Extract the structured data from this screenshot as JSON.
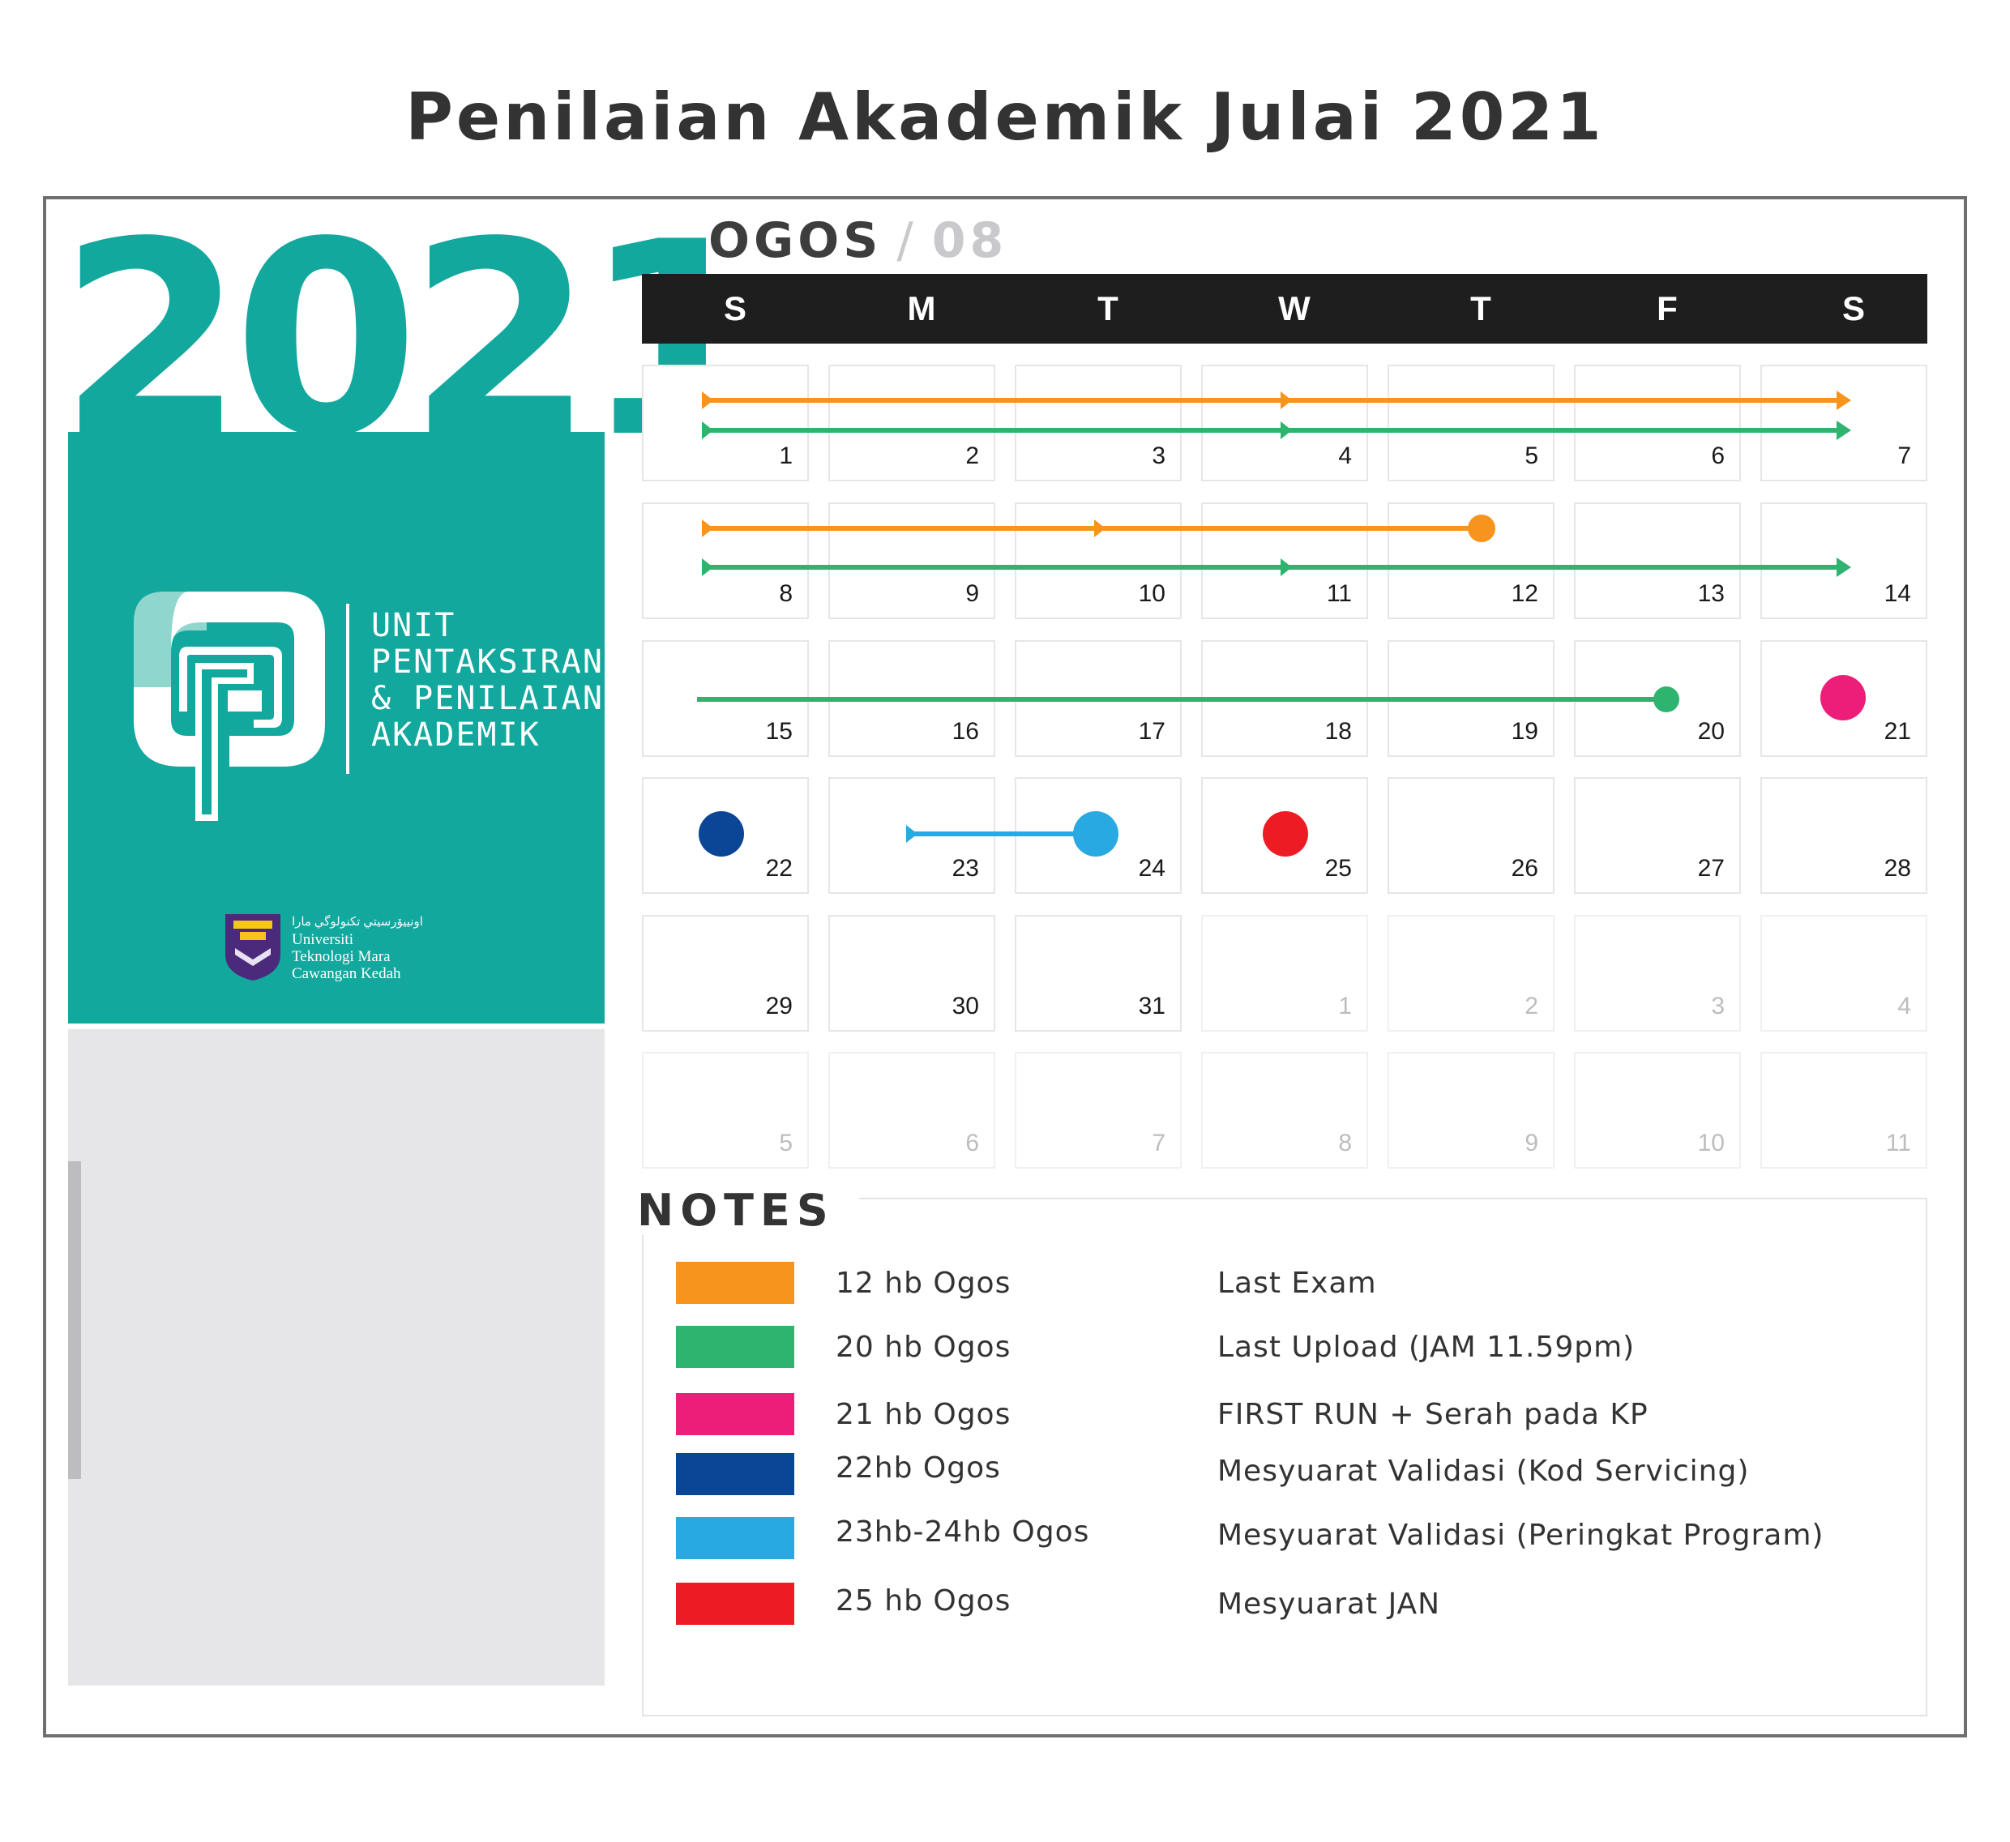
{
  "page_title": "Penilaian Akademik Julai 2021",
  "year": "2021",
  "unit": {
    "lines": [
      "UNIT",
      "PENTAKSIRAN",
      "& PENILAIAN",
      "AKADEMIK"
    ]
  },
  "university": {
    "script": "ﺍﻭﻧﻴﯿﯚﺭﺳﻴﺘﻲ ﺗﻜﻨﻮﻟﻮﮔﻲ ﻣﺎﺭﺍ",
    "lines": [
      "Universiti",
      "Teknologi Mara",
      "Cawangan Kedah"
    ]
  },
  "calendar": {
    "month_name": "OGOS",
    "slash": "/",
    "month_number": "08",
    "weekdays": [
      "S",
      "M",
      "T",
      "W",
      "T",
      "F",
      "S"
    ],
    "weeks": [
      [
        "1",
        "2",
        "3",
        "4",
        "5",
        "6",
        "7"
      ],
      [
        "8",
        "9",
        "10",
        "11",
        "12",
        "13",
        "14"
      ],
      [
        "15",
        "16",
        "17",
        "18",
        "19",
        "20",
        "21"
      ],
      [
        "22",
        "23",
        "24",
        "25",
        "26",
        "27",
        "28"
      ],
      [
        "29",
        "30",
        "31",
        "1",
        "2",
        "3",
        "4"
      ],
      [
        "5",
        "6",
        "7",
        "8",
        "9",
        "10",
        "11"
      ]
    ],
    "in_month_cells": 31
  },
  "notes": {
    "title": "NOTES",
    "items": [
      {
        "color": "#f7941d",
        "date": "12 hb Ogos",
        "description": "Last Exam"
      },
      {
        "color": "#2eb46e",
        "date": "20 hb Ogos",
        "description": "Last Upload  (JAM 11.59pm)"
      },
      {
        "color": "#ed1e79",
        "date": "21 hb Ogos",
        "description": "FIRST RUN + Serah pada KP"
      },
      {
        "color": "#0b4595",
        "date": "22hb Ogos",
        "description": "Mesyuarat Validasi (Kod Servicing)"
      },
      {
        "color": "#29a9e1",
        "date": "23hb-24hb Ogos",
        "description": "Mesyuarat Validasi (Peringkat Program)"
      },
      {
        "color": "#ed1c24",
        "date": "25 hb Ogos",
        "description": "Mesyuarat JAN"
      }
    ]
  },
  "colors": {
    "teal": "#13a89e",
    "orange": "#f7941d",
    "green": "#2eb46e",
    "pink": "#ed1e79",
    "navy": "#0b4595",
    "sky": "#29a9e1",
    "red": "#ed1c24"
  }
}
